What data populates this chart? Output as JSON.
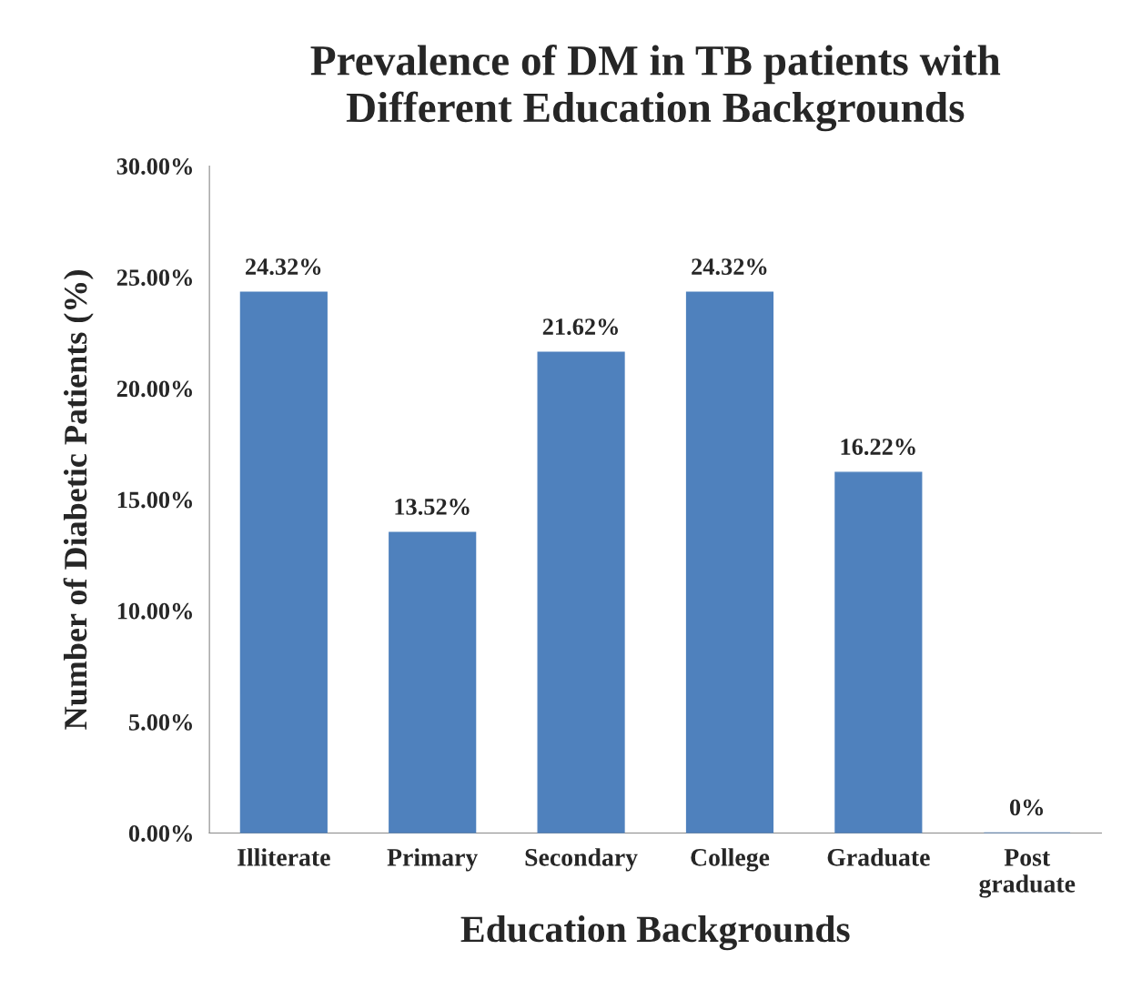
{
  "chart_data": {
    "type": "bar",
    "title": "Prevalence of DM in TB patients with\nDifferent Education Backgrounds",
    "xlabel": "Education Backgrounds",
    "ylabel": "Number of Diabetic Patients (%)",
    "categories": [
      "Illiterate",
      "Primary",
      "Secondary",
      "College",
      "Graduate",
      "Post\ngraduate"
    ],
    "values": [
      24.32,
      13.52,
      21.62,
      24.32,
      16.22,
      0
    ],
    "value_labels": [
      "24.32%",
      "13.52%",
      "21.62%",
      "24.32%",
      "16.22%",
      "0%"
    ],
    "color": "#4f81bd",
    "ylim": [
      0,
      30
    ],
    "yticks": [
      {
        "value": 0,
        "label": "0.00%"
      },
      {
        "value": 5,
        "label": "5.00%"
      },
      {
        "value": 10,
        "label": "10.00%"
      },
      {
        "value": 15,
        "label": "15.00%"
      },
      {
        "value": 20,
        "label": "20.00%"
      },
      {
        "value": 25,
        "label": "25.00%"
      },
      {
        "value": 30,
        "label": "30.00%"
      }
    ],
    "grid": false,
    "legend": false
  }
}
